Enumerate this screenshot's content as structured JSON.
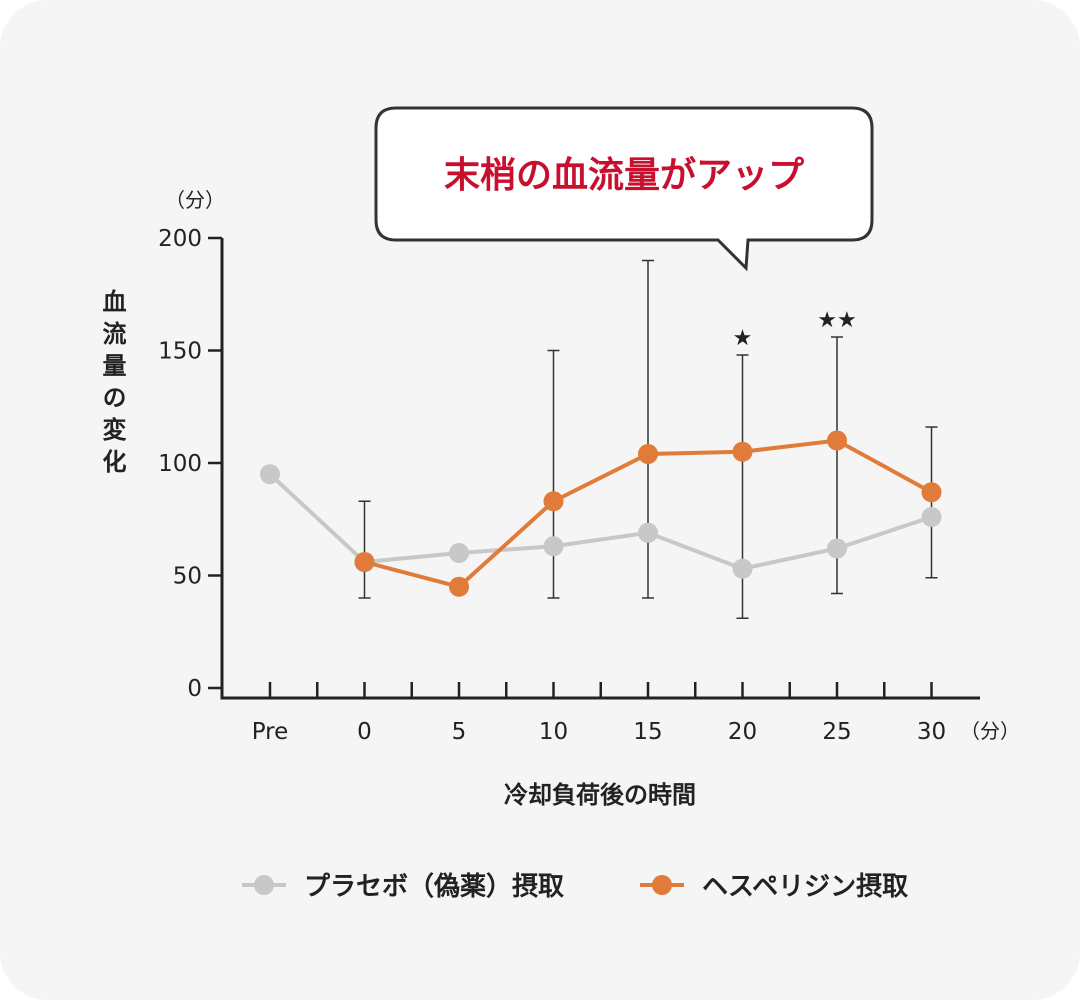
{
  "chart_data": {
    "type": "line",
    "ylabel": "血流量の変化",
    "y_unit": "（分）",
    "xlabel": "冷却負荷後の時間",
    "x_unit": "（分）",
    "ylim": [
      0,
      200
    ],
    "y_ticks": [
      "0",
      "50",
      "100",
      "150",
      "200"
    ],
    "categories": [
      "Pre",
      "0",
      "5",
      "10",
      "15",
      "20",
      "25",
      "30"
    ],
    "series": [
      {
        "name": "プラセボ（偽薬）摂取",
        "color": "#c8c8c8",
        "values": [
          95,
          56,
          60,
          63,
          69,
          53,
          62,
          76
        ]
      },
      {
        "name": "ヘスペリジン摂取",
        "color": "#e07b39",
        "values": [
          null,
          56,
          45,
          83,
          104,
          105,
          110,
          87
        ]
      }
    ],
    "error_bars": [
      {
        "category": "0",
        "upper": 83,
        "lower": 40
      },
      {
        "category": "10",
        "upper": 150,
        "lower": 40
      },
      {
        "category": "15",
        "upper": 190,
        "lower": 40
      },
      {
        "category": "20",
        "upper": 148,
        "lower": 31
      },
      {
        "category": "25",
        "upper": 156,
        "lower": 42
      },
      {
        "category": "30",
        "upper": 116,
        "lower": 49
      }
    ],
    "significance": [
      {
        "category": "20",
        "mark": "★"
      },
      {
        "category": "25",
        "mark": "★★"
      }
    ],
    "legend": {
      "placement": "bottom"
    },
    "callout": "末梢の血流量がアップ"
  }
}
